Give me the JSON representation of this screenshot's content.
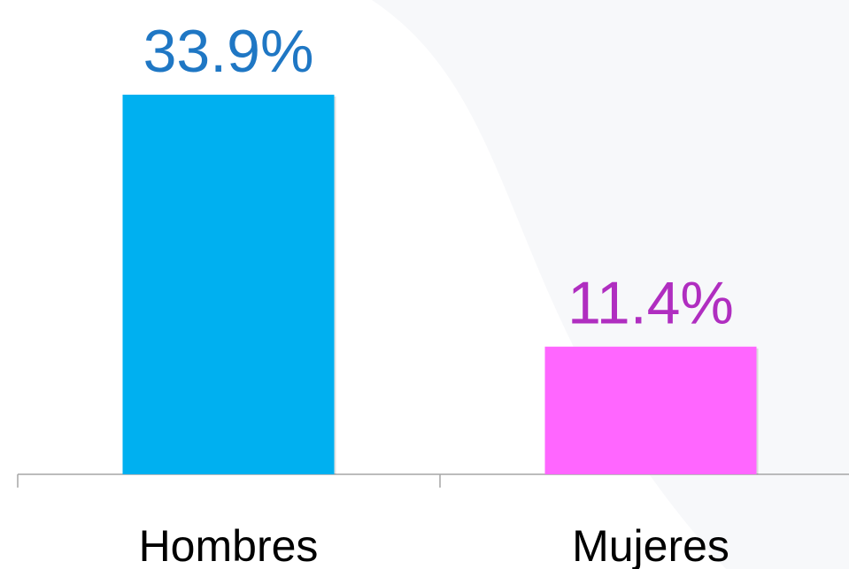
{
  "chart_data": {
    "type": "bar",
    "categories": [
      "Hombres",
      "Mujeres"
    ],
    "values": [
      33.9,
      11.4
    ],
    "value_labels": [
      "33.9%",
      "11.4%"
    ],
    "colors": [
      "#00b0f0",
      "#ff66ff"
    ],
    "label_colors": [
      "#1f77c4",
      "#b02ec0"
    ]
  }
}
